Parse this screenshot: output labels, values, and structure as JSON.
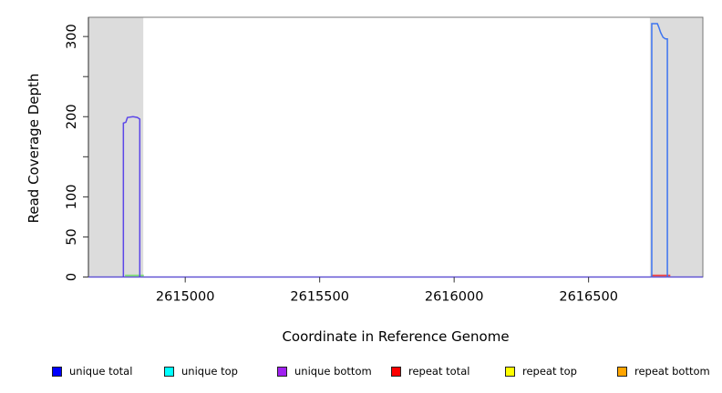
{
  "chart_data": {
    "type": "line",
    "title": "",
    "xlabel": "Coordinate in Reference Genome",
    "ylabel": "Read Coverage Depth",
    "x_axis": {
      "min": 2614640,
      "max": 2616925,
      "ticks": [
        {
          "value": 2615000,
          "label": "2615000"
        },
        {
          "value": 2615500,
          "label": "2615500"
        },
        {
          "value": 2616000,
          "label": "2616000"
        },
        {
          "value": 2616500,
          "label": "2616500"
        }
      ]
    },
    "y_axis": {
      "min": 0,
      "max": 324,
      "ticks": [
        {
          "value": 0,
          "label": "0"
        },
        {
          "value": 50,
          "label": "50"
        },
        {
          "value": 100,
          "label": "100"
        },
        {
          "value": 150,
          "label": ""
        },
        {
          "value": 200,
          "label": "200"
        },
        {
          "value": 250,
          "label": ""
        },
        {
          "value": 300,
          "label": "300"
        }
      ]
    },
    "shaded_regions": [
      {
        "from": 2614640,
        "to": 2614844
      },
      {
        "from": 2616728,
        "to": 2616925
      }
    ],
    "series": [
      {
        "name": "coverage-baseline",
        "color": "#6455EA",
        "width": 1.6,
        "opacity": 0.85,
        "points": [
          [
            2614640,
            0
          ],
          [
            2616925,
            0
          ]
        ]
      },
      {
        "name": "repeat-top-left-base",
        "color": "#7BDD72",
        "width": 1.7,
        "opacity": 1,
        "points": [
          [
            2614776,
            2
          ],
          [
            2614846,
            2
          ]
        ]
      },
      {
        "name": "repeat-total-right-base",
        "color": "#EE4040",
        "width": 1.7,
        "opacity": 1,
        "points": [
          [
            2616733,
            2
          ],
          [
            2616804,
            2
          ]
        ]
      },
      {
        "name": "unique-bottom-left-peak",
        "color": "#5B46E8",
        "width": 1.5,
        "opacity": 1,
        "points": [
          [
            2614770,
            0
          ],
          [
            2614770,
            192
          ],
          [
            2614779,
            193
          ],
          [
            2614785,
            199
          ],
          [
            2614806,
            200
          ],
          [
            2614822,
            199
          ],
          [
            2614831,
            197
          ],
          [
            2614831,
            0
          ]
        ]
      },
      {
        "name": "unique-top-right-peak",
        "color": "#3D74F0",
        "width": 1.5,
        "opacity": 1,
        "points": [
          [
            2616735,
            0
          ],
          [
            2616735,
            316
          ],
          [
            2616756,
            316
          ],
          [
            2616762,
            311
          ],
          [
            2616768,
            305
          ],
          [
            2616777,
            299
          ],
          [
            2616786,
            297
          ],
          [
            2616793,
            297
          ],
          [
            2616793,
            0
          ]
        ]
      }
    ],
    "legend": {
      "position": "bottom",
      "entries": [
        {
          "label": "unique total",
          "color": "#0000FF"
        },
        {
          "label": "unique top",
          "color": "#00FFFF"
        },
        {
          "label": "unique bottom",
          "color": "#A020F0"
        },
        {
          "label": "repeat total",
          "color": "#FF0000"
        },
        {
          "label": "repeat top",
          "color": "#FFFF00"
        },
        {
          "label": "repeat bottom",
          "color": "#FFA500"
        }
      ]
    },
    "colors": {
      "shading": "#DCDCDC",
      "box": "#777777",
      "axis": "#2B2B2B",
      "tick": "#333333",
      "text": "#000000",
      "background": "#FFFFFF"
    }
  }
}
